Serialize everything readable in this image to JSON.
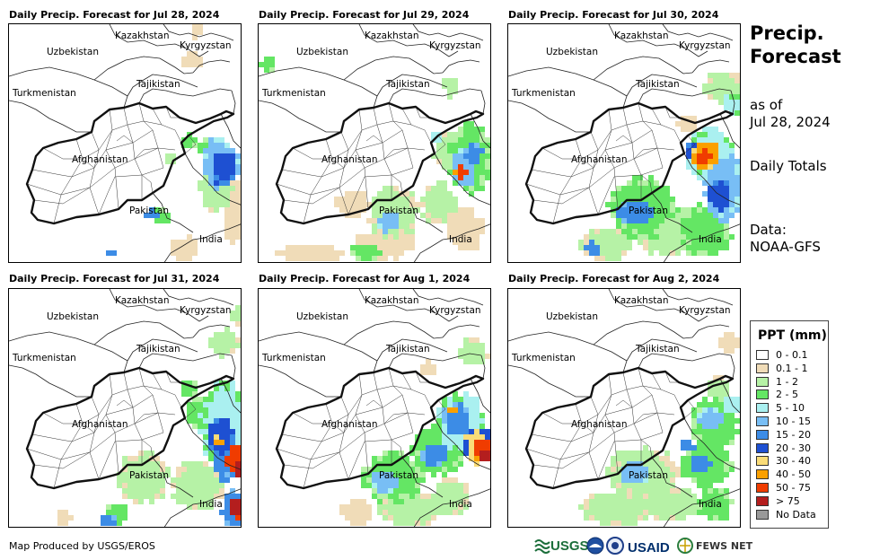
{
  "panels": [
    {
      "title": "Daily Precip. Forecast for Jul 28, 2024",
      "intensity": 1,
      "variant": 0
    },
    {
      "title": "Daily Precip. Forecast for Jul 29, 2024",
      "intensity": 2,
      "variant": 1
    },
    {
      "title": "Daily Precip. Forecast for Jul 30, 2024",
      "intensity": 3,
      "variant": 2
    },
    {
      "title": "Daily Precip. Forecast for Jul 31, 2024",
      "intensity": 3,
      "variant": 3
    },
    {
      "title": "Daily Precip. Forecast for Aug 1, 2024",
      "intensity": 3,
      "variant": 4
    },
    {
      "title": "Daily Precip. Forecast for Aug 2, 2024",
      "intensity": 2,
      "variant": 5
    }
  ],
  "map_labels": {
    "kazakhstan": "Kazakhstan",
    "kyrgyzstan": "Kyrgyzstan",
    "uzbekistan": "Uzbekistan",
    "tajikistan": "Tajikistan",
    "turkmenistan": "Turkmenistan",
    "afghanistan": "Afghanistan",
    "pakistan": "Pakistan",
    "india": "India"
  },
  "sidebar": {
    "title_line1": "Precip.",
    "title_line2": "Forecast",
    "as_of_label": "as of",
    "as_of_date": "Jul 28, 2024",
    "totals": "Daily Totals",
    "data_label": "Data:",
    "data_source": "NOAA-GFS"
  },
  "legend": {
    "title": "PPT (mm)",
    "items": [
      {
        "label": "0 - 0.1",
        "color": "#ffffff"
      },
      {
        "label": "0.1 - 1",
        "color": "#f0dcb8"
      },
      {
        "label": "1 - 2",
        "color": "#b6f2a6"
      },
      {
        "label": "2 - 5",
        "color": "#64e664"
      },
      {
        "label": "5 - 10",
        "color": "#aaf0f0"
      },
      {
        "label": "10 - 15",
        "color": "#78bef5"
      },
      {
        "label": "15 - 20",
        "color": "#3c8ce6"
      },
      {
        "label": "20 - 30",
        "color": "#1e50d2"
      },
      {
        "label": "30 - 40",
        "color": "#fadc78"
      },
      {
        "label": "40 - 50",
        "color": "#faa000"
      },
      {
        "label": "50 - 75",
        "color": "#f03c00"
      },
      {
        "label": "> 75",
        "color": "#b41e1e"
      },
      {
        "label": "No Data",
        "color": "#999999"
      }
    ]
  },
  "footer": {
    "credit": "Map Produced by USGS/EROS",
    "logo_usgs": "USGS",
    "logo_usaid": "USAID",
    "logo_fewsnet": "FEWS NET"
  }
}
